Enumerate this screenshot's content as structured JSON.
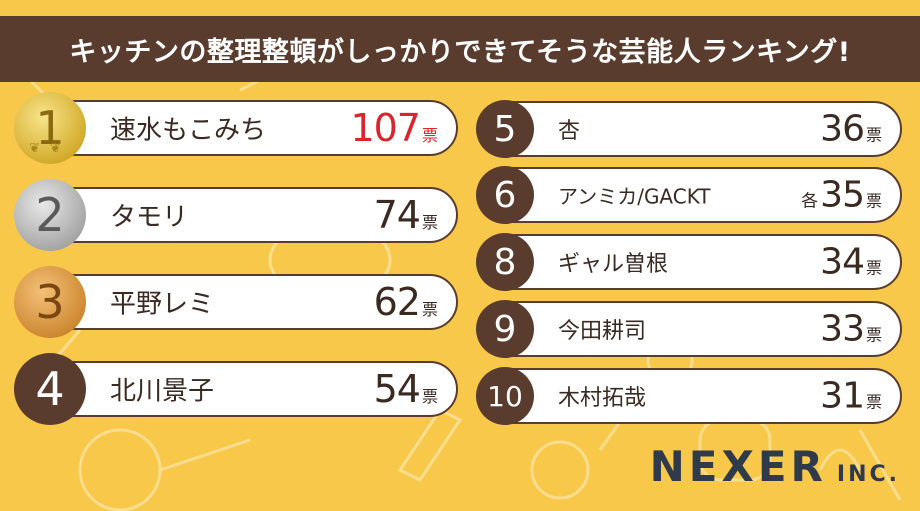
{
  "title": "キッチンの整理整頓がしっかりできてそうな芸能人ランキング!",
  "vote_unit": "票",
  "ranking": [
    {
      "rank": "1",
      "name": "速水もこみち",
      "votes": "107",
      "prefix": "",
      "medal": "gold",
      "highlight": "#d8262e"
    },
    {
      "rank": "2",
      "name": "タモリ",
      "votes": "74",
      "prefix": "",
      "medal": "silver"
    },
    {
      "rank": "3",
      "name": "平野レミ",
      "votes": "62",
      "prefix": "",
      "medal": "bronze"
    },
    {
      "rank": "4",
      "name": "北川景子",
      "votes": "54",
      "prefix": "",
      "medal": "plain"
    },
    {
      "rank": "5",
      "name": "杏",
      "votes": "36",
      "prefix": "",
      "medal": "plain"
    },
    {
      "rank": "6",
      "name": "アンミカ/GACKT",
      "votes": "35",
      "prefix": "各",
      "medal": "plain"
    },
    {
      "rank": "8",
      "name": "ギャル曽根",
      "votes": "34",
      "prefix": "",
      "medal": "plain"
    },
    {
      "rank": "9",
      "name": "今田耕司",
      "votes": "33",
      "prefix": "",
      "medal": "plain"
    },
    {
      "rank": "10",
      "name": "木村拓哉",
      "votes": "31",
      "prefix": "",
      "medal": "plain"
    }
  ],
  "logo": {
    "main": "NEXER",
    "sub": "INC."
  },
  "colors": {
    "background": "#f8c84a",
    "title_bar": "#5a3c2e",
    "badge": "#5a3c2e",
    "logo": "#2f3b4a"
  }
}
